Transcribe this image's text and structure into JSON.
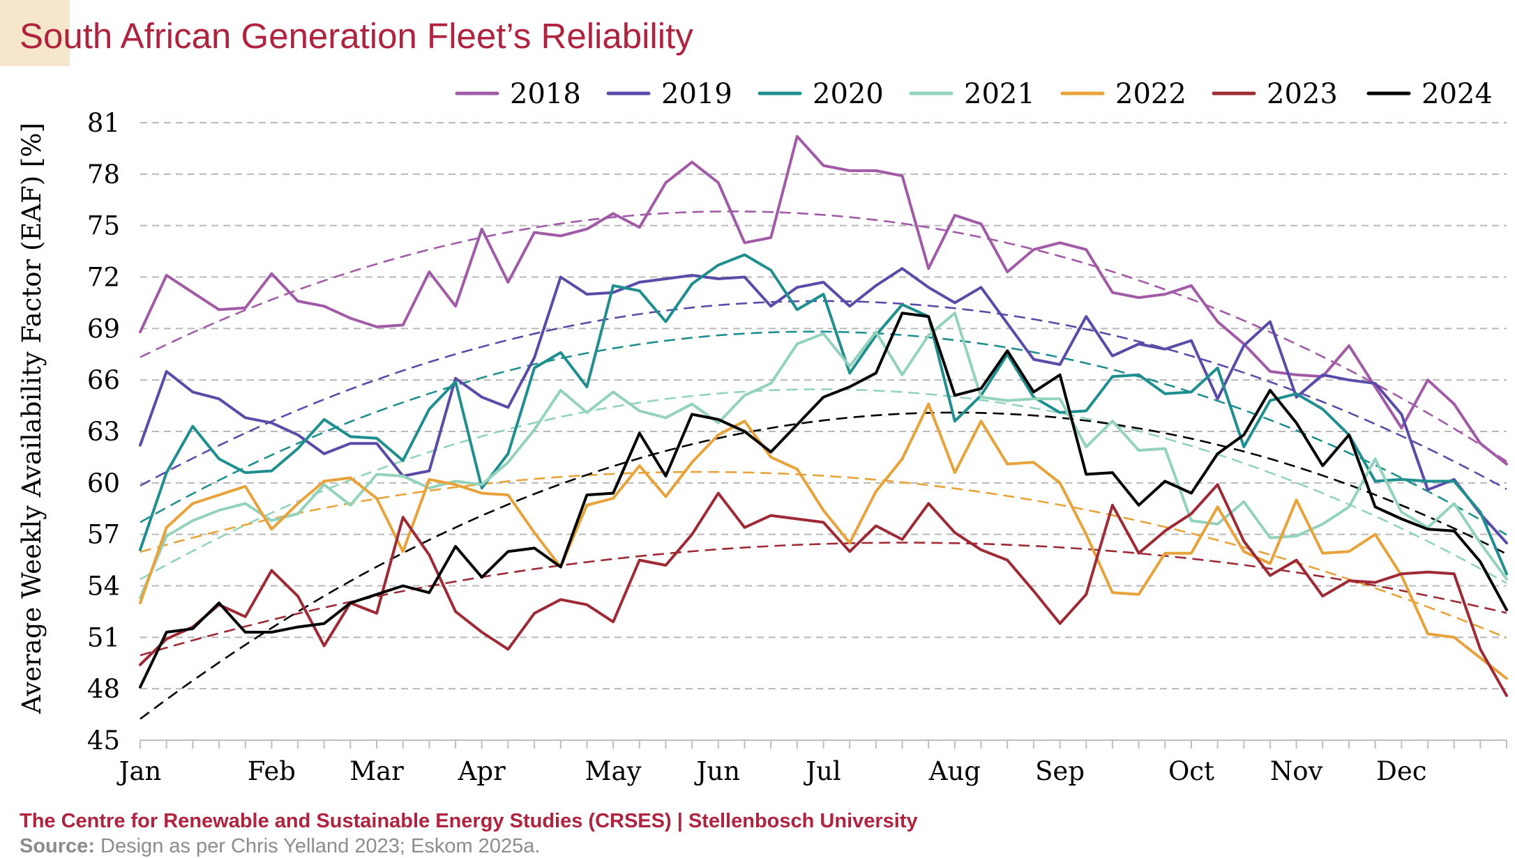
{
  "page": {
    "title": "South African Generation Fleet’s Reliability",
    "footer_org": "The Centre for Renewable and Sustainable Energy Studies (CRSES) | Stellenbosch University",
    "footer_source_label": "Source:",
    "footer_source_text": "Design as per Chris Yelland 2023; Eskom 2025a."
  },
  "chart_data": {
    "type": "line",
    "title": "South African Generation Fleet’s Reliability",
    "xlabel": "",
    "ylabel": "Average Weekly Availability Factor (EAF) [%]",
    "x_unit": "week",
    "xlim": [
      1,
      53
    ],
    "ylim": [
      45,
      81
    ],
    "yticks": [
      45,
      48,
      51,
      54,
      57,
      60,
      63,
      66,
      69,
      72,
      75,
      78,
      81
    ],
    "month_ticks": [
      {
        "label": "Jan",
        "week": 1
      },
      {
        "label": "Feb",
        "week": 6
      },
      {
        "label": "Mar",
        "week": 10
      },
      {
        "label": "Apr",
        "week": 14
      },
      {
        "label": "May",
        "week": 19
      },
      {
        "label": "Jun",
        "week": 23
      },
      {
        "label": "Jul",
        "week": 27
      },
      {
        "label": "Aug",
        "week": 32
      },
      {
        "label": "Sep",
        "week": 36
      },
      {
        "label": "Oct",
        "week": 41
      },
      {
        "label": "Nov",
        "week": 45
      },
      {
        "label": "Dec",
        "week": 49
      }
    ],
    "grid": "horizontal dashed",
    "legend_position": "top-right",
    "trendlines": "dashed polynomial trend per series",
    "series": [
      {
        "name": "2018",
        "color": "#a15aa6",
        "values": [
          68.8,
          72.1,
          71.1,
          70.1,
          70.2,
          72.2,
          70.6,
          70.3,
          69.6,
          69.1,
          69.2,
          72.3,
          70.3,
          74.8,
          71.7,
          74.6,
          74.4,
          74.8,
          75.7,
          74.9,
          77.5,
          78.7,
          77.5,
          74.0,
          74.3,
          80.2,
          78.5,
          78.2,
          78.2,
          77.9,
          72.5,
          75.6,
          75.1,
          72.3,
          73.6,
          74.0,
          73.6,
          71.1,
          70.8,
          71.0,
          71.5,
          69.4,
          68.1,
          66.5,
          66.3,
          66.2,
          68.0,
          65.6,
          63.2,
          66.0,
          64.6,
          62.3,
          61.1
        ]
      },
      {
        "name": "2019",
        "color": "#5a4ba8",
        "values": [
          62.2,
          66.5,
          65.3,
          64.9,
          63.8,
          63.5,
          62.8,
          61.7,
          62.3,
          62.3,
          60.4,
          60.7,
          66.1,
          65.0,
          64.4,
          67.3,
          72.0,
          71.0,
          71.1,
          71.7,
          71.9,
          72.1,
          71.9,
          72.0,
          70.3,
          71.4,
          71.7,
          70.3,
          71.5,
          72.5,
          71.4,
          70.5,
          71.4,
          69.3,
          67.2,
          66.9,
          69.7,
          67.4,
          68.1,
          67.8,
          68.3,
          64.9,
          68.0,
          69.4,
          65.0,
          66.3,
          66.0,
          65.8,
          64.0,
          59.6,
          60.2,
          58.2,
          56.5
        ]
      },
      {
        "name": "2020",
        "color": "#1f8e8e",
        "values": [
          56.1,
          60.6,
          63.3,
          61.4,
          60.6,
          60.7,
          62.0,
          63.7,
          62.7,
          62.6,
          61.3,
          64.3,
          65.9,
          59.7,
          61.7,
          66.7,
          67.6,
          65.6,
          71.5,
          71.2,
          69.4,
          71.6,
          72.7,
          73.3,
          72.4,
          70.1,
          71.0,
          66.4,
          68.6,
          70.4,
          69.7,
          63.6,
          65.1,
          67.5,
          65.0,
          64.1,
          64.2,
          66.2,
          66.3,
          65.2,
          65.3,
          66.7,
          62.1,
          64.8,
          65.2,
          64.3,
          62.8,
          60.1,
          60.2,
          60.1,
          60.1,
          58.3,
          54.7
        ]
      },
      {
        "name": "2021",
        "color": "#93d3bc",
        "values": [
          53.3,
          56.9,
          57.8,
          58.4,
          58.8,
          57.8,
          58.2,
          59.9,
          58.7,
          60.5,
          60.4,
          59.7,
          60.1,
          59.9,
          61.2,
          63.1,
          65.4,
          64.1,
          65.3,
          64.2,
          63.8,
          64.6,
          63.5,
          65.1,
          65.8,
          68.1,
          68.7,
          66.8,
          68.8,
          66.3,
          68.6,
          69.9,
          65.0,
          64.8,
          64.9,
          64.9,
          62.1,
          63.6,
          61.9,
          62.0,
          57.8,
          57.6,
          58.9,
          56.8,
          56.9,
          57.6,
          58.6,
          61.4,
          58.3,
          57.4,
          58.8,
          56.5,
          54.4
        ]
      },
      {
        "name": "2022",
        "color": "#e8a23a",
        "values": [
          53.0,
          57.4,
          58.8,
          59.3,
          59.8,
          57.3,
          58.8,
          60.1,
          60.3,
          59.1,
          56.0,
          60.2,
          59.9,
          59.4,
          59.3,
          57.1,
          55.1,
          58.7,
          59.1,
          61.0,
          59.2,
          61.2,
          62.8,
          63.6,
          61.5,
          60.8,
          58.4,
          56.5,
          59.5,
          61.4,
          64.6,
          60.6,
          63.6,
          61.1,
          61.2,
          60.0,
          57.0,
          53.6,
          53.5,
          55.9,
          55.9,
          58.6,
          56.0,
          55.3,
          59.0,
          55.9,
          56.0,
          57.0,
          54.6,
          51.2,
          51.0,
          49.8,
          48.6
        ]
      },
      {
        "name": "2023",
        "color": "#9e2a35",
        "values": [
          49.4,
          50.9,
          51.6,
          52.9,
          52.2,
          54.9,
          53.4,
          50.5,
          53.0,
          52.4,
          58.0,
          55.8,
          52.5,
          51.3,
          50.3,
          52.4,
          53.2,
          52.9,
          51.9,
          55.5,
          55.2,
          57.0,
          59.4,
          57.4,
          58.1,
          57.9,
          57.7,
          56.0,
          57.5,
          56.7,
          58.8,
          57.1,
          56.1,
          55.5,
          53.7,
          51.8,
          53.5,
          58.7,
          55.9,
          57.2,
          58.2,
          59.9,
          56.6,
          54.6,
          55.5,
          53.4,
          54.3,
          54.2,
          54.7,
          54.8,
          54.7,
          50.3,
          47.6
        ]
      },
      {
        "name": "2024",
        "color": "#000000",
        "values": [
          48.1,
          51.3,
          51.5,
          53.0,
          51.3,
          51.3,
          51.6,
          51.8,
          53.0,
          53.5,
          54.0,
          53.6,
          56.3,
          54.5,
          56.0,
          56.2,
          55.1,
          59.3,
          59.4,
          62.9,
          60.4,
          64.0,
          63.7,
          63.0,
          61.8,
          63.4,
          65.0,
          65.6,
          66.4,
          69.9,
          69.7,
          65.1,
          65.5,
          67.7,
          65.3,
          66.3,
          60.5,
          60.6,
          58.7,
          60.1,
          59.4,
          61.7,
          62.8,
          65.4,
          63.5,
          61.0,
          62.8,
          58.6,
          57.9,
          57.3,
          57.2,
          55.4,
          52.6
        ]
      }
    ]
  }
}
